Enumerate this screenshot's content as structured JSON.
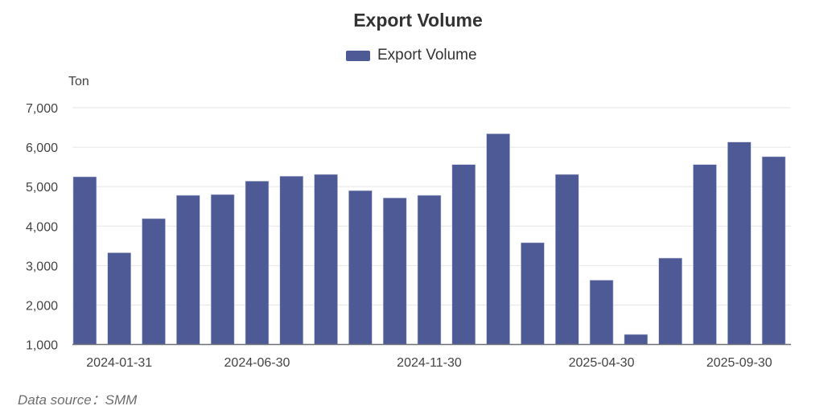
{
  "chart_data": {
    "type": "bar",
    "title": "Export Volume",
    "legend": [
      "Export Volume"
    ],
    "legend_position": "top-center",
    "ylabel": "Ton",
    "xlabel": "",
    "ylim": [
      1000,
      7000
    ],
    "yticks": [
      "1,000",
      "2,000",
      "3,000",
      "4,000",
      "5,000",
      "6,000",
      "7,000"
    ],
    "ytick_values": [
      1000,
      2000,
      3000,
      4000,
      5000,
      6000,
      7000
    ],
    "grid": true,
    "categories": [
      "2023-12-31",
      "2024-01-31",
      "2024-03-31",
      "2024-04-30",
      "2024-05-31",
      "2024-06-30",
      "2024-07-31",
      "2024-08-31",
      "2024-09-30",
      "2024-10-31",
      "2024-11-30",
      "2024-12-31",
      "2025-01-31",
      "2025-02-28",
      "2025-03-31",
      "2025-04-30",
      "2025-05-31",
      "2025-06-30",
      "2025-07-31",
      "2025-09-30",
      "2025-10-31"
    ],
    "shown_label_indices": [
      1,
      5,
      10,
      15,
      19
    ],
    "series": [
      {
        "name": "Export Volume",
        "color": "#4e5a96",
        "values": [
          5250,
          3325,
          4190,
          4780,
          4800,
          5140,
          5265,
          5310,
          4900,
          4715,
          4780,
          5560,
          6340,
          3580,
          5310,
          2630,
          1255,
          3190,
          5560,
          6130,
          5760
        ]
      }
    ]
  },
  "footer": {
    "source": "Data source：SMM"
  }
}
